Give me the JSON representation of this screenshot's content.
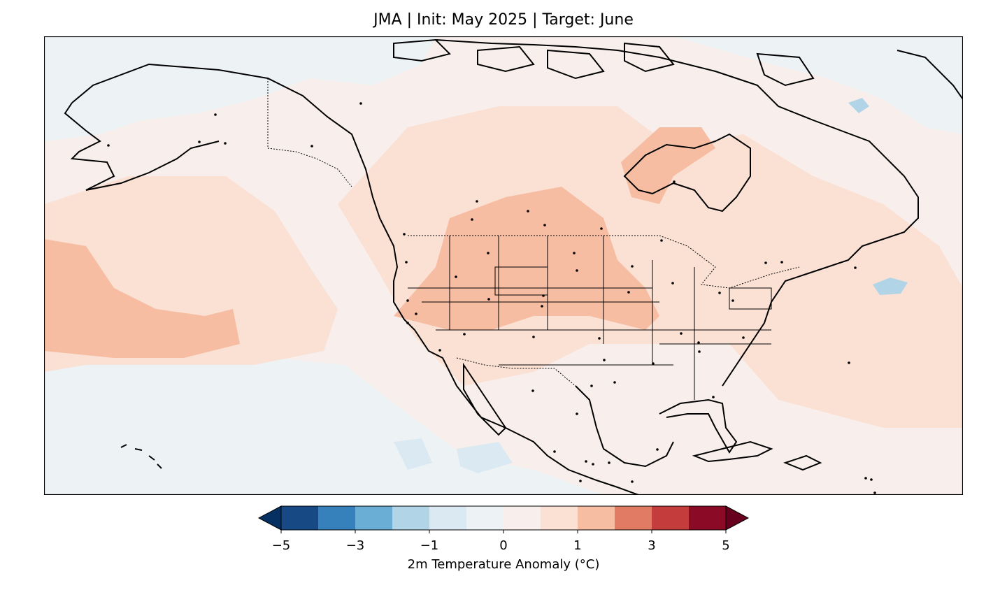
{
  "title": "JMA | Init: May 2025 | Target: June",
  "colorbar": {
    "label": "2m Temperature Anomaly (°C)",
    "ticks": [
      "−5",
      "−3",
      "−1",
      "0",
      "1",
      "3",
      "5"
    ],
    "levels": [
      -5,
      -4,
      -3,
      -2,
      -1,
      -0.5,
      0,
      0.5,
      1,
      2,
      3,
      4,
      5
    ],
    "colors": [
      "#053061",
      "#174a85",
      "#3680bc",
      "#6baed5",
      "#b1d5e7",
      "#dbe9f2",
      "#edf2f5",
      "#f8efec",
      "#fbe0d4",
      "#f6bda3",
      "#e27b64",
      "#c43c3c",
      "#8b0a26",
      "#67001f"
    ]
  },
  "map": {
    "region": "North America",
    "variable": "2m temperature anomaly",
    "units": "°C"
  }
}
